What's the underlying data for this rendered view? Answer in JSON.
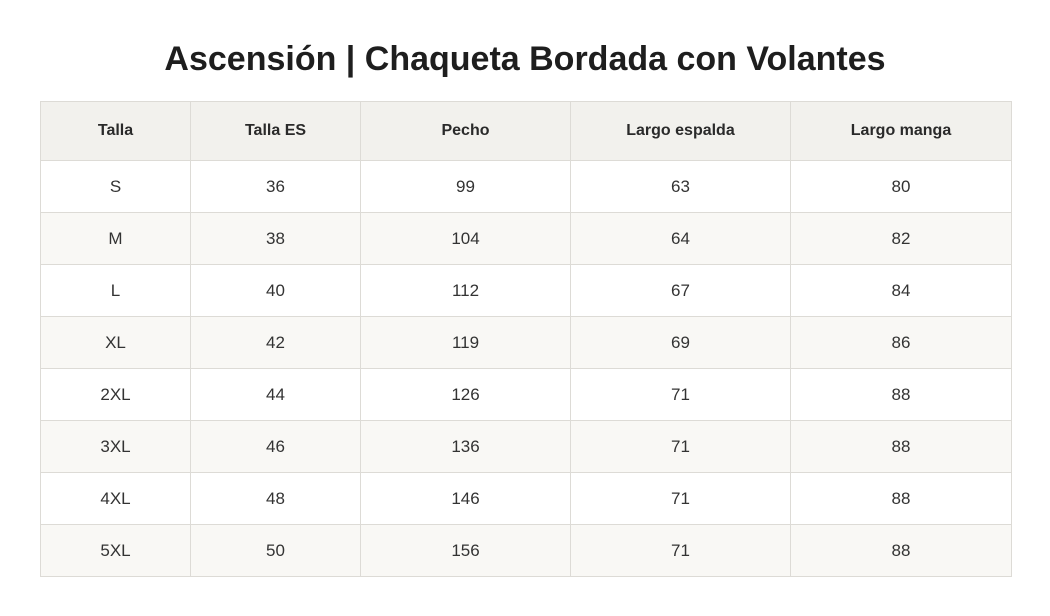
{
  "title": "Ascensión | Chaqueta Bordada con Volantes",
  "table": {
    "headers": [
      "Talla",
      "Talla ES",
      "Pecho",
      "Largo espalda",
      "Largo manga"
    ],
    "rows": [
      [
        "S",
        "36",
        "99",
        "63",
        "80"
      ],
      [
        "M",
        "38",
        "104",
        "64",
        "82"
      ],
      [
        "L",
        "40",
        "112",
        "67",
        "84"
      ],
      [
        "XL",
        "42",
        "119",
        "69",
        "86"
      ],
      [
        "2XL",
        "44",
        "126",
        "71",
        "88"
      ],
      [
        "3XL",
        "46",
        "136",
        "71",
        "88"
      ],
      [
        "4XL",
        "48",
        "146",
        "71",
        "88"
      ],
      [
        "5XL",
        "50",
        "156",
        "71",
        "88"
      ]
    ]
  },
  "colors": {
    "header_bg": "#f2f1ed",
    "row_alt_bg": "#f9f8f5",
    "border": "#dddbd6"
  }
}
